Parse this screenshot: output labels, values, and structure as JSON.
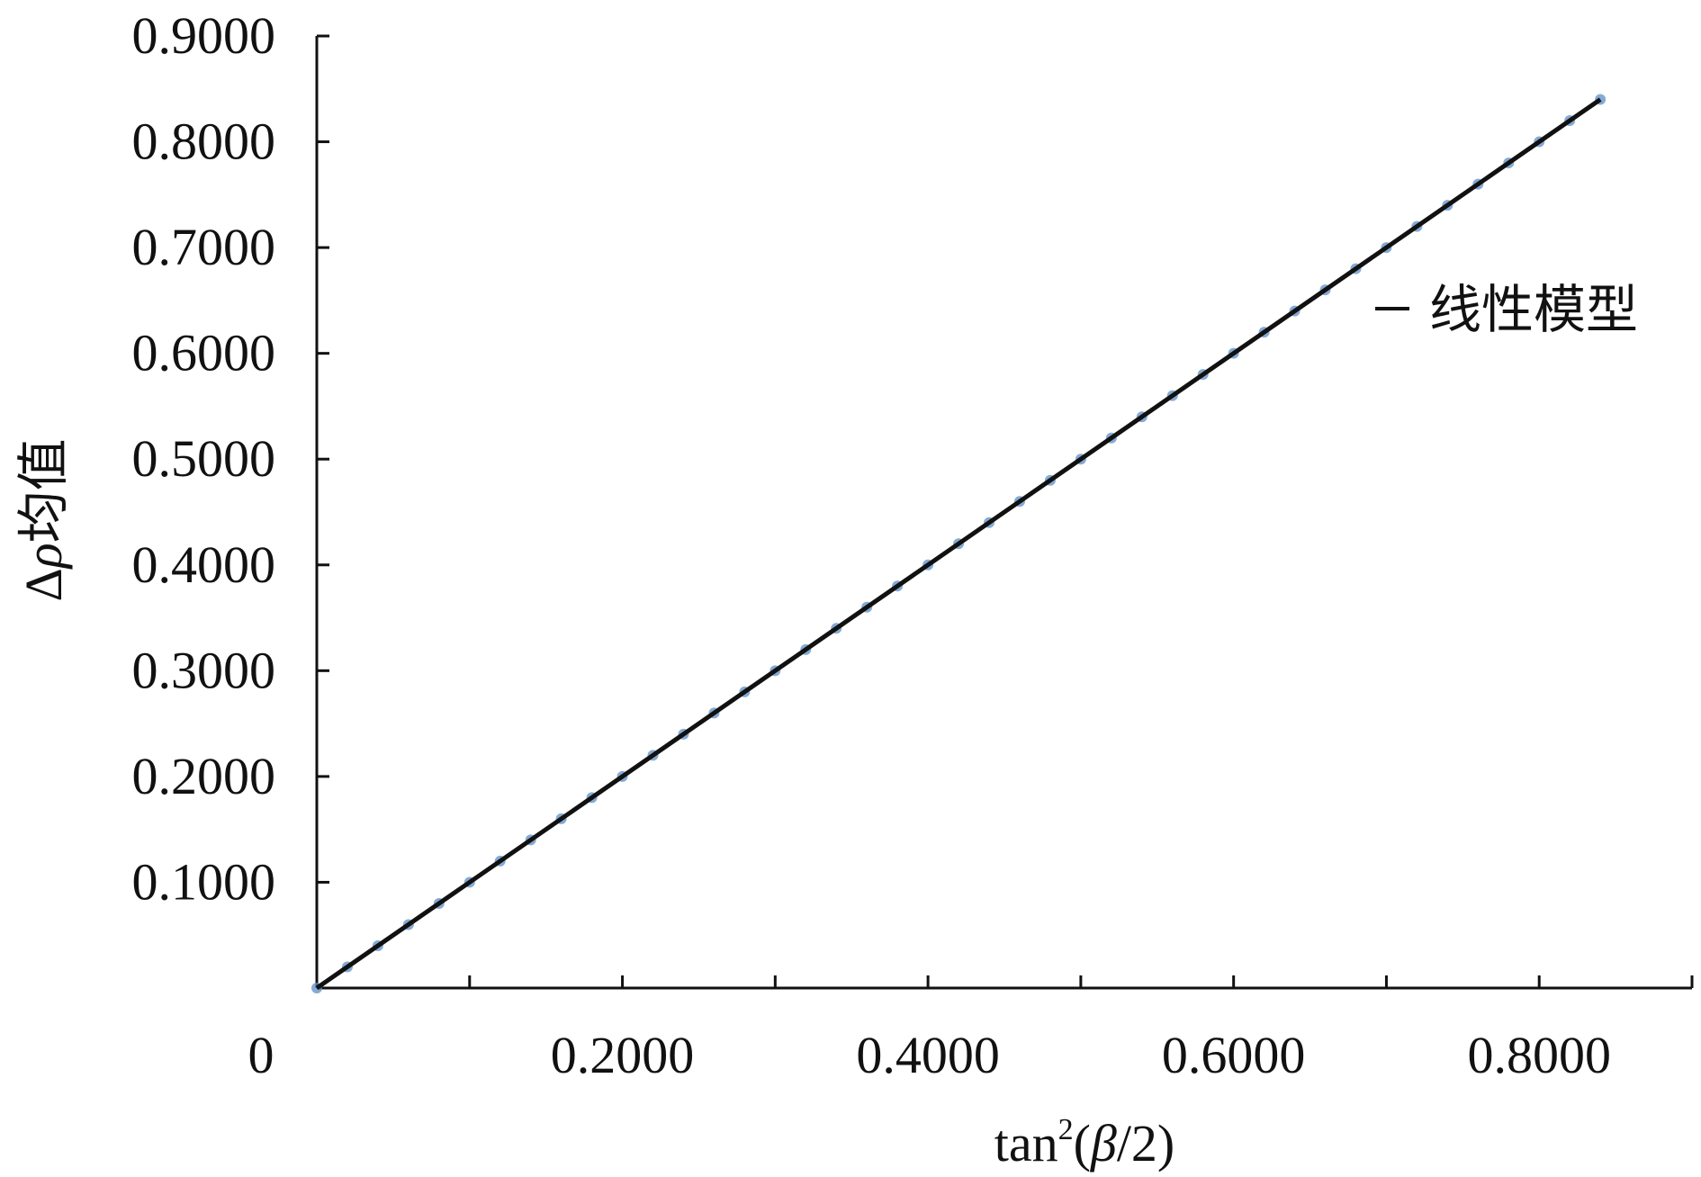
{
  "chart_data": {
    "type": "line",
    "title": "",
    "xlabel": {
      "prefix": "tan",
      "superscript": "2",
      "open_paren": "(",
      "symbol": "β",
      "suffix": "/2)"
    },
    "ylabel": {
      "prefix": "Δ",
      "symbol": "ρ",
      "suffix": "均值"
    },
    "xlim": [
      0,
      0.9
    ],
    "ylim": [
      0,
      0.9
    ],
    "x_ticks": [
      0,
      0.1,
      0.2,
      0.3,
      0.4,
      0.5,
      0.6,
      0.7,
      0.8,
      0.9
    ],
    "x_tick_labels": [
      {
        "value": 0,
        "label": "0"
      },
      {
        "value": 0.2,
        "label": "0.2000"
      },
      {
        "value": 0.4,
        "label": "0.4000"
      },
      {
        "value": 0.6,
        "label": "0.6000"
      },
      {
        "value": 0.8,
        "label": "0.8000"
      }
    ],
    "y_tick_labels": [
      {
        "value": 0.1,
        "label": "0.1000"
      },
      {
        "value": 0.2,
        "label": "0.2000"
      },
      {
        "value": 0.3,
        "label": "0.3000"
      },
      {
        "value": 0.4,
        "label": "0.4000"
      },
      {
        "value": 0.5,
        "label": "0.5000"
      },
      {
        "value": 0.6,
        "label": "0.6000"
      },
      {
        "value": 0.7,
        "label": "0.7000"
      },
      {
        "value": 0.8,
        "label": "0.8000"
      },
      {
        "value": 0.9,
        "label": "0.9000"
      }
    ],
    "grid": false,
    "legend_position": "top-right",
    "series": [
      {
        "name": "线性模型",
        "kind": "line",
        "color": "#111111",
        "x": [
          0,
          0.84
        ],
        "y": [
          0,
          0.84
        ]
      },
      {
        "name": "",
        "kind": "markers",
        "color": "#5b8fc7",
        "x": [
          0,
          0.02,
          0.04,
          0.06,
          0.08,
          0.1,
          0.12,
          0.14,
          0.16,
          0.18,
          0.2,
          0.22,
          0.24,
          0.26,
          0.28,
          0.3,
          0.32,
          0.34,
          0.36,
          0.38,
          0.4,
          0.42,
          0.44,
          0.46,
          0.48,
          0.5,
          0.52,
          0.54,
          0.56,
          0.58,
          0.6,
          0.62,
          0.64,
          0.66,
          0.68,
          0.7,
          0.72,
          0.74,
          0.76,
          0.78,
          0.8,
          0.82,
          0.84
        ],
        "y": [
          0,
          0.02,
          0.04,
          0.06,
          0.08,
          0.1,
          0.12,
          0.14,
          0.16,
          0.18,
          0.2,
          0.22,
          0.24,
          0.26,
          0.28,
          0.3,
          0.32,
          0.34,
          0.36,
          0.38,
          0.4,
          0.42,
          0.44,
          0.46,
          0.48,
          0.5,
          0.52,
          0.54,
          0.56,
          0.58,
          0.6,
          0.62,
          0.64,
          0.66,
          0.68,
          0.7,
          0.72,
          0.74,
          0.76,
          0.78,
          0.8,
          0.82,
          0.84
        ]
      }
    ]
  }
}
